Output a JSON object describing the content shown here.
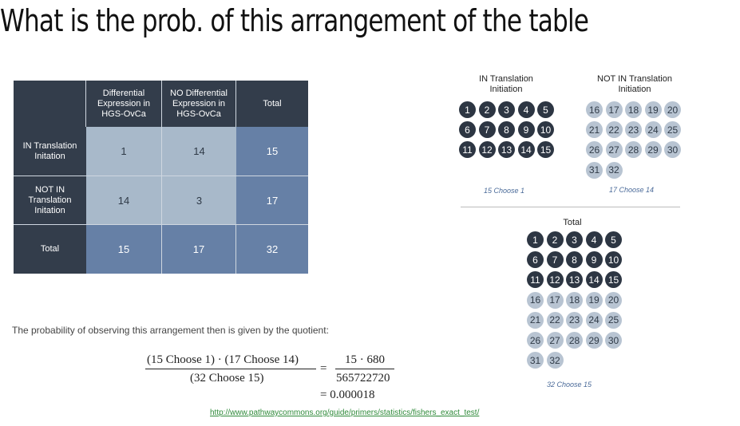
{
  "title": "What is the prob. of this arrangement of the table",
  "table": {
    "headers": [
      "",
      "Differential Expression in HGS-OvCa",
      "NO Differential Expression in HGS-OvCa",
      "Total"
    ],
    "rows": [
      {
        "label": "IN Translation Initation",
        "values": [
          "1",
          "14",
          "15"
        ]
      },
      {
        "label": "NOT IN Translation Initation",
        "values": [
          "14",
          "3",
          "17"
        ]
      },
      {
        "label": "Total",
        "values": [
          "15",
          "17",
          "32"
        ]
      }
    ]
  },
  "groups": {
    "in_title": "IN Translation Initiation",
    "not_in_title": "NOT IN Translation Initiation",
    "total_title": "Total",
    "in_caption": "15 Choose 1",
    "not_in_caption": "17 Choose 14",
    "total_caption": "32 Choose 15"
  },
  "probability_text": "The probability of observing this arrangement then is given by the quotient:",
  "formula": {
    "numerator_left": "(15 Choose 1) · (17 Choose 14)",
    "denominator_left": "(32 Choose 15)",
    "eq": "=",
    "numerator_right": "15 · 680",
    "denominator_right": "565722720",
    "result": "= 0.000018"
  },
  "link": "http://www.pathwaycommons.org/guide/primers/statistics/fishers_exact_test/",
  "colors": {
    "dark": "#333d4b",
    "light": "#a8b9ca",
    "mid": "#6680a6",
    "ball_dark": "#2d3643",
    "ball_light": "#b8c4d2"
  }
}
